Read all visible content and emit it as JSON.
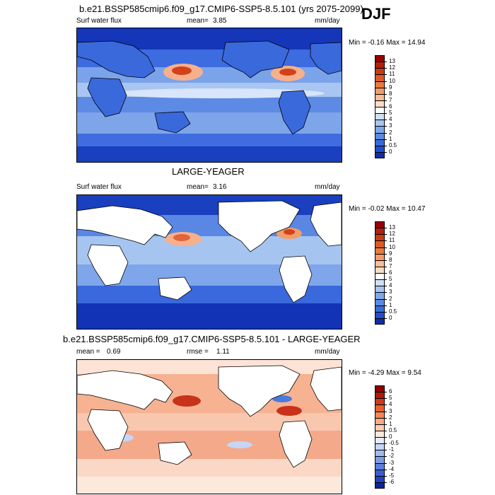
{
  "season": "DJF",
  "panels": [
    {
      "id": "p1",
      "title": "b.e21.BSSP585cmip6.f09_g17.CMIP6-SSP5-8.5.101 (yrs 2075-2099)",
      "left_label": "Surf water flux",
      "center_label": "mean=",
      "center_value": "3.85",
      "units": "mm/day",
      "minmax_prefix": "Min =",
      "min": "-0.16",
      "max_prefix": "Max =",
      "max": "14.94",
      "colorbar": {
        "labels": [
          "13",
          "12",
          "11",
          "10",
          "9",
          "8",
          "7",
          "6",
          "5",
          "4",
          "3",
          "2",
          "1",
          "0.5",
          "0"
        ],
        "colors": [
          "#990000",
          "#b2200c",
          "#c83b14",
          "#dc5a24",
          "#ea7a40",
          "#f49c68",
          "#f9bd97",
          "#fbdcc6",
          "#ffffff",
          "#cfe0f7",
          "#a7c6f0",
          "#7fa8ea",
          "#5a8be3",
          "#3a6bd8",
          "#1f4fd0",
          "#0d2ea8"
        ]
      }
    },
    {
      "id": "p2",
      "title": "LARGE-YEAGER",
      "left_label": "Surf water flux",
      "center_label": "mean=",
      "center_value": "3.16",
      "units": "mm/day",
      "minmax_prefix": "Min =",
      "min": "-0.02",
      "max_prefix": "Max =",
      "max": "10.47",
      "colorbar": {
        "labels": [
          "13",
          "12",
          "11",
          "10",
          "9",
          "8",
          "7",
          "6",
          "5",
          "4",
          "3",
          "2",
          "1",
          "0.5",
          "0"
        ],
        "colors": [
          "#990000",
          "#b2200c",
          "#c83b14",
          "#dc5a24",
          "#ea7a40",
          "#f49c68",
          "#f9bd97",
          "#fbdcc6",
          "#ffffff",
          "#cfe0f7",
          "#a7c6f0",
          "#7fa8ea",
          "#5a8be3",
          "#3a6bd8",
          "#1f4fd0",
          "#0d2ea8"
        ]
      }
    },
    {
      "id": "p3",
      "title": "b.e21.BSSP585cmip6.f09_g17.CMIP6-SSP5-8.5.101 - LARGE-YEAGER",
      "left_label": "mean =",
      "left_value": "0.69",
      "center_label": "rmse =",
      "center_value": "1.11",
      "units": "mm/day",
      "minmax_prefix": "Min =",
      "min": "-4.29",
      "max_prefix": "Max =",
      "max": "9.54",
      "colorbar": {
        "labels": [
          "6",
          "5",
          "4",
          "3",
          "2",
          "1",
          "0.5",
          "0",
          "-0.5",
          "-1",
          "-2",
          "-3",
          "-4",
          "-5",
          "-6"
        ],
        "colors": [
          "#8a0000",
          "#b01a0a",
          "#cf3a18",
          "#e85f30",
          "#f48554",
          "#f8a985",
          "#fbcdb4",
          "#fde8dc",
          "#e4ecfb",
          "#c5d6f6",
          "#a0bbef",
          "#7c9de6",
          "#5b7fdc",
          "#3c5fd0",
          "#2342c0",
          "#0c249e"
        ]
      }
    }
  ]
}
